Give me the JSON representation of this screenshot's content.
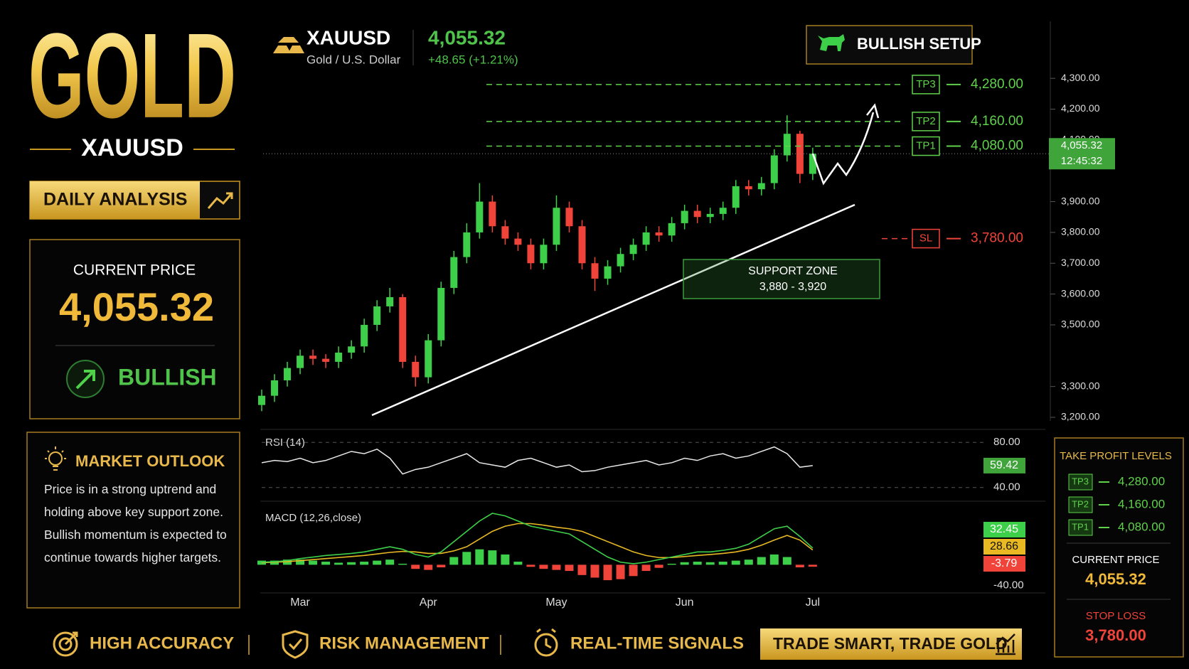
{
  "brand": {
    "title": "GOLD",
    "symbol": "XAUUSD",
    "badge": "DAILY ANALYSIS"
  },
  "price_card": {
    "label": "CURRENT PRICE",
    "trend": "BULLISH"
  },
  "market_outlook": {
    "title": "MARKET OUTLOOK",
    "text": "Price is in a strong uptrend and holding above key support zone. Bullish momentum is expected to continue towards higher targets."
  },
  "header": {
    "symbol": "XAUUSD",
    "name": "Gold / U.S. Dollar",
    "change": "+48.65 (+1.21%)",
    "setup": "BULLISH SETUP"
  },
  "chart_data": [
    {
      "type": "candlestick",
      "categories": [
        null,
        null,
        null,
        "Mar",
        null,
        null,
        null,
        null,
        null,
        null,
        null,
        null,
        null,
        "Apr",
        null,
        null,
        null,
        null,
        null,
        null,
        null,
        null,
        null,
        "May",
        null,
        null,
        null,
        null,
        null,
        null,
        null,
        null,
        null,
        "Jun",
        null,
        null,
        null,
        null,
        null,
        null,
        null,
        null,
        null,
        "Jul"
      ],
      "open": [
        3240,
        3270,
        3320,
        3360,
        3400,
        3390,
        3380,
        3410,
        3430,
        3500,
        3560,
        3590,
        3380,
        3330,
        3450,
        3620,
        3720,
        3800,
        3900,
        3820,
        3780,
        3760,
        3700,
        3760,
        3880,
        3820,
        3700,
        3650,
        3690,
        3730,
        3760,
        3800,
        3790,
        3830,
        3870,
        3850,
        3860,
        3880,
        3950,
        3940,
        3960,
        4050,
        4120,
        3990
      ],
      "high": [
        3290,
        3340,
        3380,
        3420,
        3420,
        3405,
        3430,
        3450,
        3520,
        3580,
        3620,
        3600,
        3400,
        3470,
        3640,
        3740,
        3830,
        3960,
        3920,
        3840,
        3800,
        3780,
        3780,
        3920,
        3900,
        3840,
        3720,
        3710,
        3750,
        3780,
        3820,
        3820,
        3850,
        3890,
        3890,
        3880,
        3900,
        3970,
        3970,
        3980,
        4070,
        4180,
        4130,
        4075
      ],
      "low": [
        3220,
        3250,
        3300,
        3340,
        3370,
        3360,
        3360,
        3390,
        3410,
        3480,
        3540,
        3360,
        3300,
        3310,
        3430,
        3600,
        3700,
        3780,
        3800,
        3760,
        3740,
        3680,
        3680,
        3740,
        3800,
        3680,
        3610,
        3630,
        3670,
        3710,
        3740,
        3770,
        3770,
        3810,
        3830,
        3830,
        3840,
        3860,
        3920,
        3920,
        3940,
        4030,
        3960,
        3970
      ],
      "close": [
        3270,
        3320,
        3360,
        3400,
        3390,
        3380,
        3410,
        3430,
        3500,
        3560,
        3590,
        3380,
        3330,
        3450,
        3620,
        3720,
        3800,
        3900,
        3820,
        3780,
        3760,
        3700,
        3760,
        3880,
        3820,
        3700,
        3650,
        3690,
        3730,
        3760,
        3800,
        3790,
        3830,
        3870,
        3850,
        3860,
        3880,
        3950,
        3940,
        3960,
        4050,
        4120,
        3990,
        4055.32
      ],
      "up_color": "#3ecf4a",
      "down_color": "#f0443a",
      "ylim": [
        3170,
        4335
      ],
      "yticks": [
        {
          "value": 4300,
          "label": "4,300.00"
        },
        {
          "value": 4200,
          "label": "4,200.00"
        },
        {
          "value": 4100,
          "label": "4,100.00"
        },
        {
          "value": 3900,
          "label": "3,900.00"
        },
        {
          "value": 3800,
          "label": "3,800.00"
        },
        {
          "value": 3700,
          "label": "3,700.00"
        },
        {
          "value": 3600,
          "label": "3,600.00"
        },
        {
          "value": 3500,
          "label": "3,500.00"
        },
        {
          "value": 3300,
          "label": "3,300.00"
        },
        {
          "value": 3200,
          "label": "3,200.00"
        }
      ],
      "last_price": {
        "value": 4055.32,
        "label": "4,055.32"
      },
      "last_time": "12:45:32",
      "levels": [
        {
          "name": "TP3",
          "value": 4280,
          "label": "4,280.00",
          "color": "#5fd14a"
        },
        {
          "name": "TP2",
          "value": 4160,
          "label": "4,160.00",
          "color": "#5fd14a"
        },
        {
          "name": "TP1",
          "value": 4080,
          "label": "4,080.00",
          "color": "#5fd14a"
        },
        {
          "name": "SL",
          "value": 3780,
          "label": "3,780.00",
          "color": "#f0443a"
        }
      ],
      "support_zone": {
        "label": "SUPPORT ZONE",
        "range": "3,880 - 3,920"
      }
    },
    {
      "type": "line",
      "title": "RSI (14)",
      "values": [
        62,
        64,
        63,
        66,
        62,
        64,
        68,
        72,
        70,
        74,
        66,
        52,
        56,
        58,
        62,
        66,
        70,
        62,
        60,
        58,
        64,
        66,
        62,
        58,
        60,
        54,
        55,
        58,
        60,
        62,
        64,
        60,
        62,
        66,
        64,
        68,
        70,
        66,
        68,
        72,
        76,
        70,
        58,
        59.42
      ],
      "color": "#e8e8e8",
      "ylim": [
        31,
        89
      ],
      "yticks": [
        {
          "value": 80,
          "label": "80.00"
        },
        {
          "value": 40,
          "label": "40.00"
        }
      ]
    },
    {
      "type": "macd",
      "title": "MACD (12,26,close)",
      "macd_line": {
        "color": "#3ecf4a",
        "values": [
          5,
          6,
          8,
          12,
          15,
          18,
          20,
          22,
          25,
          30,
          35,
          30,
          20,
          15,
          25,
          45,
          65,
          85,
          100,
          95,
          85,
          75,
          70,
          65,
          60,
          45,
          30,
          15,
          5,
          2,
          5,
          10,
          15,
          20,
          25,
          25,
          28,
          32,
          40,
          55,
          70,
          75,
          55,
          32.45
        ]
      },
      "signal_line": {
        "color": "#e8b923",
        "values": [
          4,
          5,
          6,
          8,
          10,
          12,
          14,
          16,
          18,
          21,
          24,
          26,
          25,
          22,
          22,
          27,
          35,
          50,
          65,
          75,
          80,
          80,
          77,
          73,
          70,
          65,
          55,
          45,
          35,
          25,
          18,
          14,
          14,
          16,
          18,
          20,
          22,
          25,
          30,
          38,
          48,
          57,
          48,
          28.66
        ]
      },
      "histogram": {
        "up_color": "#3ecf4a",
        "down_color": "#f0443a",
        "values": [
          8,
          8,
          10,
          10,
          8,
          6,
          4,
          5,
          6,
          8,
          10,
          2,
          -8,
          -10,
          -5,
          15,
          25,
          30,
          28,
          20,
          6,
          -4,
          -8,
          -10,
          -12,
          -20,
          -25,
          -30,
          -28,
          -22,
          -12,
          -6,
          2,
          5,
          6,
          5,
          6,
          8,
          10,
          15,
          20,
          15,
          -5,
          -3.79
        ]
      },
      "ylim": [
        -52,
        118
      ],
      "yticks": [
        {
          "value": -40,
          "label": "-40.00"
        }
      ]
    }
  ],
  "side_panel": {
    "title": "TAKE PROFIT LEVELS",
    "current_label": "CURRENT PRICE",
    "stop_label": "STOP LOSS"
  },
  "footer": {
    "items": [
      "HIGH ACCURACY",
      "RISK MANAGEMENT",
      "REAL-TIME SIGNALS"
    ],
    "cta": "TRADE SMART, TRADE GOLD"
  }
}
